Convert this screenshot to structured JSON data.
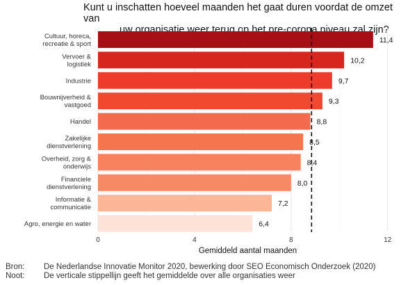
{
  "chart_data": {
    "type": "bar",
    "orientation": "horizontal",
    "title_line1": "Kunt u inschatten hoeveel maanden het gaat duren voordat de omzet van",
    "title_line2": "uw organisatie weer terug op het pre-corona niveau zal zijn?",
    "categories": [
      [
        "Cultuur, horeca,",
        "recreatie & sport"
      ],
      [
        "Vervoer &",
        "logistiek"
      ],
      [
        "Industrie"
      ],
      [
        "Bouwnijverheid &",
        "vastgoed"
      ],
      [
        "Handel"
      ],
      [
        "Zakelijke",
        "dienstverlening"
      ],
      [
        "Overheid, zorg &",
        "onderwijs"
      ],
      [
        "Financiele",
        "dienstverlening"
      ],
      [
        "Informatie &",
        "communicatie"
      ],
      [
        "Agro, energie en water"
      ]
    ],
    "values": [
      11.4,
      10.2,
      9.7,
      9.3,
      8.8,
      8.5,
      8.4,
      8.0,
      7.2,
      6.4
    ],
    "value_labels": [
      "11,4",
      "10,2",
      "9,7",
      "9,3",
      "8,8",
      "8,5",
      "8,4",
      "8,0",
      "7,2",
      "6,4"
    ],
    "bar_colors": [
      "#a50f15",
      "#d7261e",
      "#ee3b2c",
      "#f0492f",
      "#f46a4e",
      "#f5754f",
      "#f8825e",
      "#f68a65",
      "#fbb697",
      "#fde2d7"
    ],
    "xlabel": "Gemiddeld aantal maanden",
    "xlim": [
      0,
      12.7
    ],
    "xticks": [
      0,
      4,
      8,
      12
    ],
    "xtick_labels": [
      "0",
      "4",
      "8",
      "12"
    ],
    "reference_line": {
      "value": 8.85,
      "style": "dashed",
      "color": "#111111"
    },
    "grid": true
  },
  "footer": {
    "source_label": "Bron:",
    "source_text": "De Nederlandse Innovatie Monitor 2020, bewerking door SEO Economisch Onderzoek (2020)",
    "note_label": "Noot:",
    "note_text": "De verticale stippellijn geeft het gemiddelde over alle organisaties weer"
  }
}
